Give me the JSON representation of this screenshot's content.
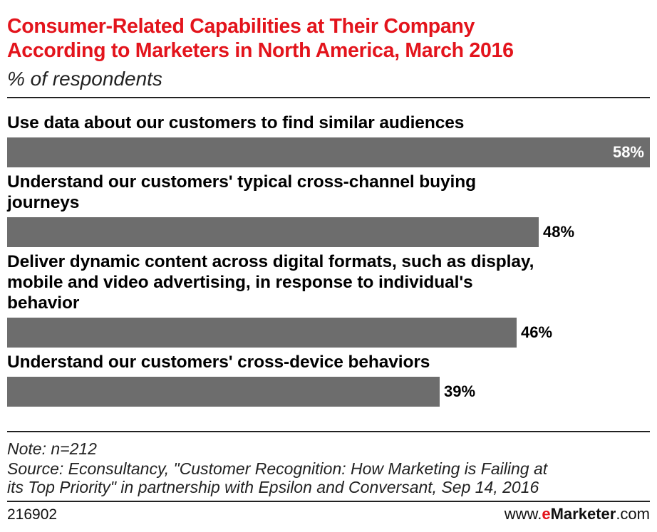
{
  "title_line1": "Consumer-Related Capabilities at Their Company",
  "title_line2": "According to Marketers in North America, March 2016",
  "subtitle": "% of respondents",
  "chart_data": {
    "type": "bar",
    "orientation": "horizontal",
    "categories": [
      "Use data about our customers to find similar audiences",
      "Understand our customers' typical cross-channel buying journeys",
      "Deliver dynamic content across digital formats, such as display, mobile and video advertising, in response to individual's behavior",
      "Understand our customers' cross-device behaviors"
    ],
    "category_lines": [
      [
        "Use data about our customers to find similar audiences"
      ],
      [
        "Understand our customers' typical cross-channel buying",
        "journeys"
      ],
      [
        "Deliver dynamic content across digital formats, such as display,",
        "mobile and video advertising, in response to individual's",
        "behavior"
      ],
      [
        "Understand our customers' cross-device behaviors"
      ]
    ],
    "values": [
      58,
      48,
      46,
      39
    ],
    "value_labels": [
      "58%",
      "48%",
      "46%",
      "39%"
    ],
    "xlim": [
      0,
      58
    ],
    "grid": false,
    "bar_color": "#6d6d6d"
  },
  "note": "Note: n=212",
  "source_line1": "Source: Econsultancy, \"Customer Recognition: How Marketing is Failing at",
  "source_line2": "its Top Priority\" in partnership with Epsilon and Conversant, Sep 14, 2016",
  "chart_id": "216902",
  "brand": {
    "prefix": "www.",
    "e": "e",
    "mid": "Marketer",
    "suffix": ".com"
  },
  "colors": {
    "title": "#e3141c",
    "bar": "#6d6d6d",
    "brand_accent": "#e3141c"
  }
}
